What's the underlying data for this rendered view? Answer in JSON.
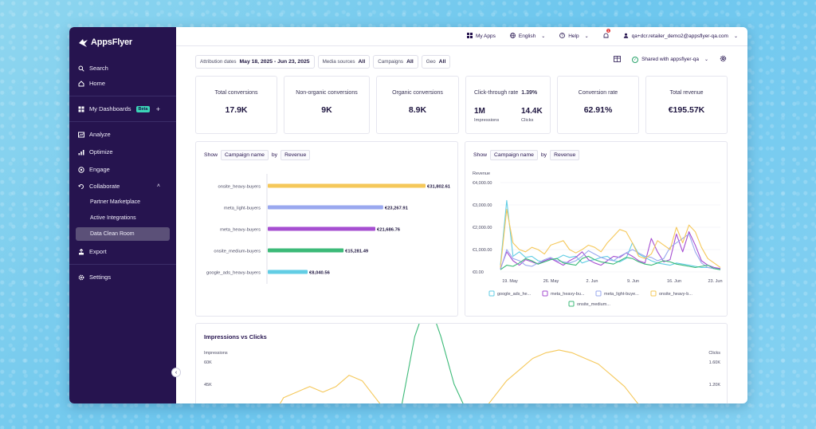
{
  "app": {
    "brand": "AppsFlyer"
  },
  "sidebar": {
    "items": [
      {
        "label": "Search",
        "icon": "search-icon"
      },
      {
        "label": "Home",
        "icon": "home-icon"
      },
      {
        "label": "My Dashboards",
        "icon": "dashboard-icon",
        "badge": "Beta"
      },
      {
        "label": "Analyze",
        "icon": "analyze-icon"
      },
      {
        "label": "Optimize",
        "icon": "optimize-icon"
      },
      {
        "label": "Engage",
        "icon": "engage-icon"
      },
      {
        "label": "Collaborate",
        "icon": "collaborate-icon"
      },
      {
        "label": "Export",
        "icon": "export-icon"
      },
      {
        "label": "Settings",
        "icon": "gear-icon"
      }
    ],
    "collaborate_sub": [
      "Partner Marketplace",
      "Active Integrations",
      "Data Clean Room"
    ],
    "active_sub": "Data Clean Room"
  },
  "topbar": {
    "my_apps": "My Apps",
    "language": "English",
    "help": "Help",
    "notifications": "1",
    "user": "qa+dcr.retailer_demo2@appsflyer-qa.com"
  },
  "filters": [
    {
      "label": "Attribution dates",
      "value": "May 18, 2025 - Jun 23, 2025"
    },
    {
      "label": "Media sources",
      "value": "All"
    },
    {
      "label": "Campaigns",
      "value": "All"
    },
    {
      "label": "Geo",
      "value": "All"
    }
  ],
  "shared": "Shared with appsflyer-qa",
  "kpis": [
    {
      "title": "Total conversions",
      "value": "17.9K"
    },
    {
      "title": "Non-organic conversions",
      "value": "9K"
    },
    {
      "title": "Organic conversions",
      "value": "8.9K"
    },
    {
      "title": "Click-through rate",
      "rate": "1.39%",
      "impressions": "1M",
      "impressions_label": "Impressions",
      "clicks": "14.4K",
      "clicks_label": "Clicks"
    },
    {
      "title": "Conversion rate",
      "value": "62.91%"
    },
    {
      "title": "Total revenue",
      "value": "€195.57K"
    }
  ],
  "controls": {
    "show": "Show",
    "by": "by",
    "group": "Campaign name",
    "metric": "Revenue"
  },
  "chart_data": [
    {
      "type": "bar",
      "orientation": "horizontal",
      "categories": [
        "onsite_heavy-buyers",
        "meta_light-buyers",
        "meta_heavy-buyers",
        "onsite_medium-buyers",
        "google_ads_heavy-buyers"
      ],
      "values": [
        31802.61,
        23267.91,
        21686.76,
        15281.49,
        8040.56
      ],
      "value_labels": [
        "€31,802.61",
        "€23,267.91",
        "€21,686.76",
        "€15,281.49",
        "€8,040.56"
      ],
      "colors": [
        "#f5c85a",
        "#9aa8ef",
        "#a64fd1",
        "#3cba78",
        "#62cde4"
      ]
    },
    {
      "type": "line",
      "ylabel": "Revenue",
      "y_ticks": [
        "€4,000.00",
        "€3,000.00",
        "€2,000.00",
        "€1,000.00",
        "€0.00"
      ],
      "ylim": [
        0,
        4000
      ],
      "x_ticks": [
        "19. May",
        "26. May",
        "2. Jun",
        "9. Jun",
        "16. Jun",
        "23. Jun"
      ],
      "legend": [
        "google_ads_he...",
        "meta_heavy-bu...",
        "meta_light-buye...",
        "onsite_heavy-b...",
        "onsite_medium..."
      ],
      "legend_colors": [
        "#62cde4",
        "#a64fd1",
        "#9aa8ef",
        "#f5c85a",
        "#3cba78"
      ],
      "series": [
        {
          "values": [
            300,
            3200,
            700,
            900,
            650,
            700,
            500,
            450,
            550,
            600,
            750,
            650,
            700,
            400,
            500,
            550,
            650,
            700,
            500,
            450,
            600,
            1300,
            800,
            650,
            500,
            400,
            350,
            300,
            400,
            350,
            300,
            250,
            200,
            200,
            150,
            150
          ]
        },
        {
          "values": [
            150,
            900,
            500,
            300,
            550,
            450,
            350,
            500,
            600,
            450,
            300,
            500,
            650,
            900,
            550,
            400,
            300,
            500,
            700,
            650,
            850,
            700,
            500,
            400,
            1500,
            900,
            450,
            550,
            1700,
            900,
            1800,
            1200,
            500,
            300,
            200,
            150
          ]
        },
        {
          "values": [
            100,
            1000,
            600,
            500,
            300,
            250,
            400,
            550,
            650,
            500,
            450,
            400,
            500,
            700,
            950,
            800,
            650,
            550,
            500,
            700,
            850,
            1000,
            850,
            700,
            650,
            500,
            600,
            1100,
            1300,
            1500,
            1700,
            900,
            400,
            200,
            150,
            100
          ]
        },
        {
          "values": [
            200,
            2800,
            1300,
            1000,
            900,
            1100,
            1000,
            800,
            1200,
            1300,
            1400,
            1000,
            850,
            1000,
            1200,
            1100,
            900,
            1300,
            1600,
            1900,
            1800,
            1300,
            700,
            600,
            800,
            1400,
            1200,
            1000,
            2000,
            1300,
            2100,
            1800,
            1100,
            600,
            400,
            200
          ]
        },
        {
          "values": [
            100,
            300,
            250,
            400,
            600,
            500,
            350,
            450,
            550,
            600,
            400,
            350,
            300,
            600,
            700,
            550,
            450,
            400,
            350,
            500,
            650,
            600,
            450,
            350,
            300,
            400,
            500,
            450,
            350,
            300,
            250,
            200,
            250,
            300,
            150,
            100
          ]
        }
      ]
    },
    {
      "type": "line",
      "title": "Impressions vs Clicks",
      "ylabel": "Impressions",
      "y2label": "Clicks",
      "y_ticks": [
        "60K",
        "45K"
      ],
      "y2_ticks": [
        "1.60K",
        "1.20K"
      ],
      "ylim": [
        0,
        60000
      ],
      "series": [
        {
          "color": "#3cba78",
          "values": [
            0,
            0,
            0,
            0,
            0,
            0,
            0,
            0,
            0,
            0,
            0,
            0,
            200,
            800,
            3000,
            4200,
            3000,
            1500,
            600,
            200,
            0,
            0,
            0,
            0,
            0,
            0,
            0,
            0,
            0,
            0,
            0,
            0,
            0,
            0,
            0,
            0
          ]
        },
        {
          "color": "#f5c85a",
          "values": [
            0,
            0,
            0,
            200,
            600,
            700,
            800,
            700,
            800,
            1000,
            900,
            600,
            300,
            200,
            100,
            0,
            0,
            0,
            100,
            300,
            600,
            900,
            1100,
            1300,
            1400,
            1450,
            1400,
            1300,
            1200,
            1000,
            800,
            500,
            300,
            100,
            0,
            0
          ]
        }
      ]
    }
  ]
}
